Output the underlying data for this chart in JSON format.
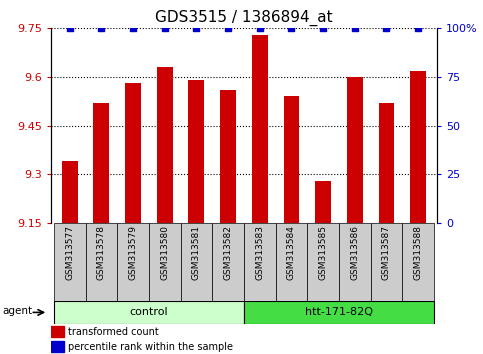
{
  "title": "GDS3515 / 1386894_at",
  "samples": [
    "GSM313577",
    "GSM313578",
    "GSM313579",
    "GSM313580",
    "GSM313581",
    "GSM313582",
    "GSM313583",
    "GSM313584",
    "GSM313585",
    "GSM313586",
    "GSM313587",
    "GSM313588"
  ],
  "values": [
    9.34,
    9.52,
    9.58,
    9.63,
    9.59,
    9.56,
    9.73,
    9.54,
    9.28,
    9.6,
    9.52,
    9.62
  ],
  "percentile_ranks": [
    100,
    100,
    100,
    100,
    100,
    100,
    100,
    100,
    100,
    100,
    100,
    100
  ],
  "bar_color": "#cc0000",
  "dot_color": "#0000cc",
  "ylim_left": [
    9.15,
    9.75
  ],
  "ylim_right": [
    0,
    100
  ],
  "yticks_left": [
    9.15,
    9.3,
    9.45,
    9.6,
    9.75
  ],
  "yticks_right": [
    0,
    25,
    50,
    75,
    100
  ],
  "ytick_labels_right": [
    "0",
    "25",
    "50",
    "75",
    "100%"
  ],
  "groups": [
    {
      "label": "control",
      "start": 0,
      "end": 6,
      "color": "#ccffcc"
    },
    {
      "label": "htt-171-82Q",
      "start": 6,
      "end": 12,
      "color": "#44dd44"
    }
  ],
  "agent_label": "agent",
  "legend_items": [
    {
      "color": "#cc0000",
      "label": "transformed count"
    },
    {
      "color": "#0000cc",
      "label": "percentile rank within the sample"
    }
  ],
  "bar_width": 0.5,
  "background_color": "#ffffff",
  "sample_box_color": "#cccccc",
  "title_fontsize": 11,
  "tick_fontsize": 8,
  "label_fontsize": 8
}
